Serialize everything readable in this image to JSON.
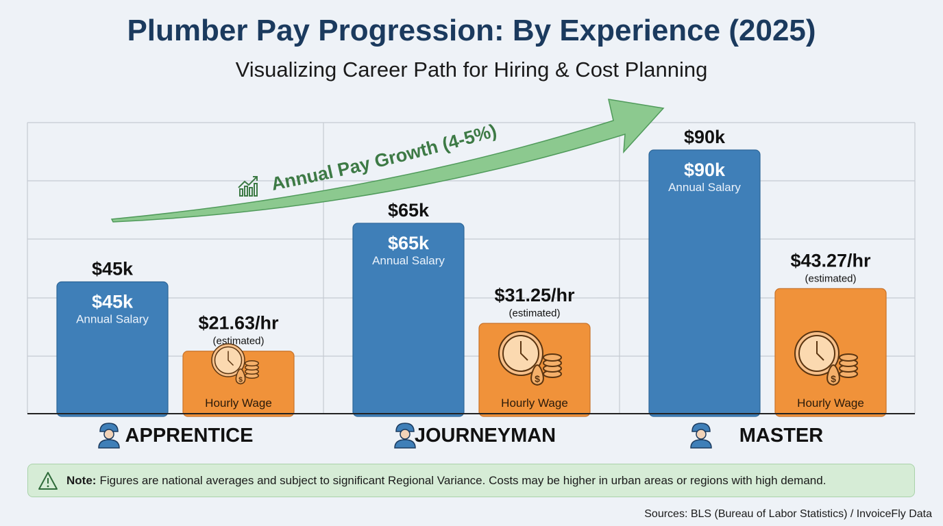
{
  "title": "Plumber Pay Progression: By Experience (2025)",
  "subtitle": "Visualizing Career Path for Hiring & Cost Planning",
  "chart_data": {
    "type": "bar",
    "categories": [
      "APPRENTICE",
      "JOURNEYMAN",
      "MASTER"
    ],
    "series": [
      {
        "name": "Annual Salary",
        "unit": "USD/year",
        "values": [
          45000,
          65000,
          90000
        ],
        "labels": [
          "$45k",
          "$65k",
          "$90k"
        ],
        "color": "#3f7fb8"
      },
      {
        "name": "Hourly Wage",
        "unit": "USD/hour",
        "values": [
          21.63,
          31.25,
          43.27
        ],
        "labels": [
          "$21.63/hr",
          "$31.25/hr",
          "$43.27/hr"
        ],
        "sublabel": "(estimated)",
        "color": "#f0923a"
      }
    ],
    "grid": true,
    "annotation": "Annual Pay Growth (4-5%)",
    "annotation_color": "#3d7a45",
    "arrow_color": "#8cc98f"
  },
  "note": {
    "label": "Note:",
    "text": "Figures are national averages and subject to significant Regional Variance. Costs may be higher in urban areas or regions with high demand."
  },
  "sources": "Sources: BLS (Bureau of Labor Statistics) / InvoiceFly Data",
  "icons": {
    "category": "worker-icon",
    "hourly": "clock-coins-icon",
    "note": "warning-icon",
    "growth": "trend-chart-icon"
  }
}
